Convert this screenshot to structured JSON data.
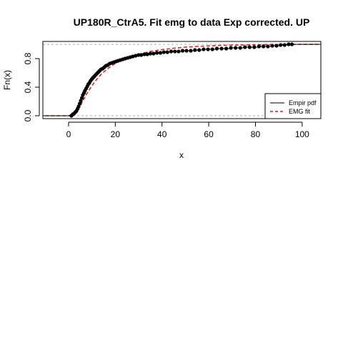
{
  "chart_data": {
    "type": "line",
    "title": "UP180R_CtrA5. Fit emg to data Exp corrected. UP",
    "xlabel": "x",
    "ylabel": "Fn(x)",
    "xlim": [
      -11,
      108
    ],
    "ylim": [
      -0.04,
      1.04
    ],
    "xticks": [
      0,
      20,
      40,
      60,
      80,
      100
    ],
    "xtick_labels": [
      "0",
      "20",
      "40",
      "60",
      "80",
      "100"
    ],
    "yticks": [
      0.0,
      0.4,
      0.8
    ],
    "ytick_labels": [
      "0.0",
      "0.4",
      "0.8"
    ],
    "reference_lines_y": [
      0,
      1
    ],
    "legend": {
      "position": "bottom-right",
      "entries": [
        {
          "label": "Empir pdf",
          "color": "#000000",
          "style": "solid"
        },
        {
          "label": "EMG fit",
          "color": "#dd2222",
          "style": "dashed"
        }
      ]
    },
    "series": [
      {
        "name": "Empir pdf",
        "kind": "ecdf-points",
        "color": "#000000",
        "x": [
          1.2,
          1.8,
          2.3,
          2.9,
          3.4,
          3.9,
          4.3,
          4.8,
          5.2,
          5.7,
          6.1,
          6.6,
          7.0,
          7.5,
          8.0,
          8.4,
          8.9,
          9.4,
          9.9,
          10.4,
          11.0,
          11.5,
          12.1,
          12.7,
          13.3,
          13.9,
          14.6,
          15.3,
          16.0,
          16.8,
          17.6,
          18.5,
          19.4,
          20.3,
          21.2,
          22.2,
          23.2,
          24.2,
          25.3,
          26.4,
          27.5,
          28.7,
          29.9,
          31.1,
          32.4,
          33.7,
          35.0,
          36.4,
          37.8,
          39.3,
          40.8,
          42.3,
          43.9,
          45.5,
          47.1,
          48.8,
          50.5,
          52.3,
          54.1,
          55.9,
          57.8,
          59.7,
          61.6,
          63.5,
          65.5,
          67.5,
          69.5,
          71.5,
          73.5,
          75.5,
          77.5,
          79.5,
          81.5,
          83.4,
          85.3,
          87.2,
          89.0,
          90.8,
          92.5,
          94.2,
          95.6
        ],
        "y": [
          0.0,
          0.02,
          0.03,
          0.05,
          0.07,
          0.1,
          0.13,
          0.17,
          0.21,
          0.25,
          0.29,
          0.32,
          0.35,
          0.38,
          0.41,
          0.44,
          0.46,
          0.49,
          0.51,
          0.53,
          0.55,
          0.57,
          0.59,
          0.61,
          0.63,
          0.65,
          0.66,
          0.68,
          0.7,
          0.71,
          0.73,
          0.74,
          0.75,
          0.76,
          0.77,
          0.78,
          0.79,
          0.8,
          0.81,
          0.82,
          0.83,
          0.84,
          0.85,
          0.85,
          0.86,
          0.86,
          0.87,
          0.87,
          0.88,
          0.88,
          0.89,
          0.89,
          0.9,
          0.9,
          0.9,
          0.91,
          0.91,
          0.91,
          0.92,
          0.92,
          0.93,
          0.93,
          0.93,
          0.94,
          0.94,
          0.94,
          0.95,
          0.95,
          0.95,
          0.96,
          0.96,
          0.96,
          0.97,
          0.97,
          0.97,
          0.98,
          0.98,
          0.99,
          0.99,
          1.0,
          1.0
        ]
      },
      {
        "name": "EMG fit",
        "kind": "curve",
        "color": "#dd2222",
        "x": [
          -10,
          -5,
          0,
          1,
          2,
          3,
          4,
          5,
          6,
          7,
          8,
          9,
          10,
          12,
          14,
          16,
          18,
          20,
          22,
          25,
          28,
          31,
          35,
          40,
          45,
          50,
          55,
          60,
          65,
          70,
          75,
          80,
          85,
          90,
          95,
          100,
          108
        ],
        "y": [
          0.0,
          0.0,
          0.0,
          0.01,
          0.02,
          0.05,
          0.09,
          0.14,
          0.2,
          0.26,
          0.32,
          0.37,
          0.42,
          0.51,
          0.58,
          0.64,
          0.69,
          0.73,
          0.77,
          0.81,
          0.84,
          0.87,
          0.9,
          0.925,
          0.945,
          0.96,
          0.97,
          0.978,
          0.984,
          0.988,
          0.991,
          0.994,
          0.996,
          0.997,
          0.998,
          0.999,
          1.0
        ]
      }
    ]
  }
}
